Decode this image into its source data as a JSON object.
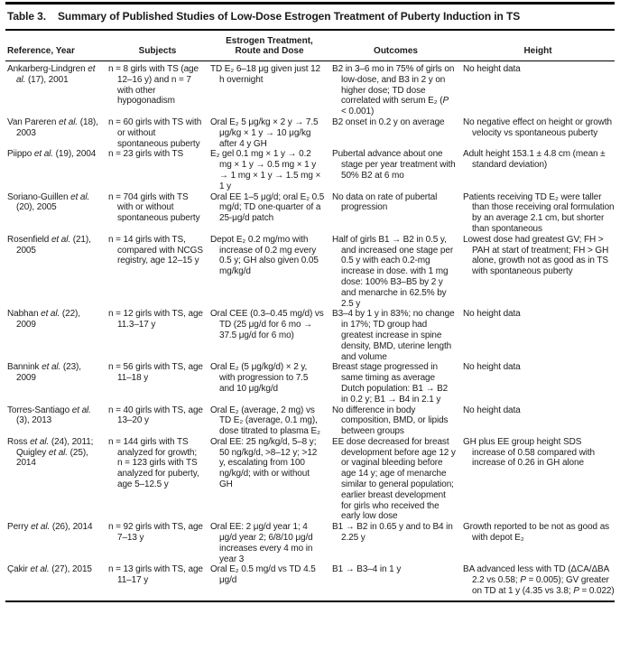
{
  "page": {
    "colors": {
      "background": "#ffffff",
      "text": "#1b1b1b",
      "rule": "#000000"
    }
  },
  "table": {
    "label": "Table 3.",
    "title": "Summary of Published Studies of Low-Dose Estrogen Treatment of Puberty Induction in TS",
    "columns": [
      "Reference, Year",
      "Subjects",
      "Estrogen Treatment, Route and Dose",
      "Outcomes",
      "Height"
    ],
    "rows": [
      {
        "reference": "Ankarberg-Lindgren *et al.* (17), 2001",
        "subjects": "n = 8 girls with TS (age 12–16 y) and n = 7 with other hypogonadism",
        "treatment": "TD E₂ 6–18 μg given just 12 h overnight",
        "outcomes": "B2 in 3–6 mo in 75% of girls on low-dose, and B3 in 2 y on higher dose; TD dose correlated with serum E₂ (*P* < 0.001)",
        "height": "No height data"
      },
      {
        "reference": "Van Pareren *et al.* (18), 2003",
        "subjects": "n = 60 girls with TS with or without spontaneous puberty",
        "treatment": "Oral E₂ 5 μg/kg × 2 y → 7.5 μg/kg × 1 y → 10 μg/kg after 4 y GH",
        "outcomes": "B2 onset in 0.2 y on average",
        "height": "No negative effect on height or growth velocity vs spontaneous puberty"
      },
      {
        "reference": "Piippo *et al.* (19), 2004",
        "subjects": "n = 23 girls with TS",
        "treatment": "E₂ gel 0.1 mg × 1 y → 0.2 mg × 1 y → 0.5 mg × 1 y → 1 mg × 1 y → 1.5 mg × 1 y",
        "outcomes": "Pubertal advance about one stage per year treatment with 50% B2 at 6 mo",
        "height": "Adult height 153.1 ± 4.8 cm (mean ± standard deviation)"
      },
      {
        "reference": "Soriano-Guillen *et al.* (20), 2005",
        "subjects": "n = 704 girls with TS with or without spontaneous puberty",
        "treatment": "Oral EE 1–5 μg/d; oral E₂ 0.5 mg/d; TD one-quarter of a 25-μg/d patch",
        "outcomes": "No data on rate of pubertal progression",
        "height": "Patients receiving TD E₂ were taller than those receiving oral formulation by an average 2.1 cm, but shorter than spontaneous"
      },
      {
        "reference": "Rosenfield *et al.* (21), 2005",
        "subjects": "n = 14 girls with TS, compared with NCGS registry, age 12–15 y",
        "treatment": "Depot E₂ 0.2 mg/mo with increase of 0.2 mg every 0.5 y; GH also given 0.05 mg/kg/d",
        "outcomes": "Half of girls B1 → B2 in 0.5 y, and increased one stage per 0.5 y with each 0.2-mg increase in dose. with 1 mg dose: 100% B3–B5 by 2 y and menarche in 62.5% by 2.5 y",
        "height": "Lowest dose had greatest GV; FH > PAH at start of treatment; FH > GH alone, growth not as good as in TS with spontaneous puberty"
      },
      {
        "reference": "Nabhan *et al.* (22), 2009",
        "subjects": "n = 12 girls with TS, age 11.3–17 y",
        "treatment": "Oral CEE (0.3–0.45 mg/d) vs TD (25 μg/d for 6 mo → 37.5 μg/d for 6 mo)",
        "outcomes": "B3–4 by 1 y in 83%; no change in 17%; TD group had greatest increase in spine density, BMD, uterine length and volume",
        "height": "No height data"
      },
      {
        "reference": "Bannink *et al.* (23), 2009",
        "subjects": "n = 56 girls with TS, age 11–18 y",
        "treatment": "Oral E₂ (5 μg/kg/d) × 2 y, with progression to 7.5 and 10 μg/kg/d",
        "outcomes": "Breast stage progressed in same timing as average Dutch population: B1 → B2 in 0.2 y; B1 → B4 in 2.1 y",
        "height": "No height data"
      },
      {
        "reference": "Torres-Santiago *et al.* (3), 2013",
        "subjects": "n = 40 girls with TS, age 13–20 y",
        "treatment": "Oral E₂ (average, 2 mg) vs TD E₂ (average, 0.1 mg), dose titrated to plasma E₂",
        "outcomes": "No difference in body composition, BMD, or lipids between groups",
        "height": "No height data"
      },
      {
        "reference": "Ross *et al.* (24), 2011; Quigley *et al.* (25), 2014",
        "subjects": "n = 144 girls with TS analyzed for growth; n = 123 girls with TS analyzed for puberty, age 5–12.5 y",
        "treatment": "Oral EE: 25 ng/kg/d, 5–8 y; 50 ng/kg/d, >8–12 y; >12 y, escalating from 100 ng/kg/d; with or without GH",
        "outcomes": "EE dose decreased for breast development before age 12 y or vaginal bleeding before age 14 y; age of menarche similar to general population; earlier breast development for girls who received the early low dose",
        "height": "GH plus EE group height SDS increase of 0.58 compared with increase of 0.26 in GH alone"
      },
      {
        "reference": "Perry *et al.* (26), 2014",
        "subjects": "n = 92 girls with TS, age 7–13 y",
        "treatment": "Oral EE: 2 μg/d year 1; 4 μg/d year 2; 6/8/10 μg/d increases every 4 mo in year 3",
        "outcomes": "B1 → B2 in 0.65 y and to B4 in 2.25 y",
        "height": "Growth reported to be not as good as with depot E₂"
      },
      {
        "reference": "Çakir *et al.* (27), 2015",
        "subjects": "n = 13 girls with TS, age 11–17 y",
        "treatment": "Oral E₂ 0.5 mg/d vs TD 4.5 μg/d",
        "outcomes": "B1 → B3–4 in 1 y",
        "height": "BA advanced less with TD (ΔCA/ΔBA 2.2 vs 0.58; *P* = 0.005); GV greater on TD at 1 y (4.35 vs 3.8; *P* = 0.022)"
      }
    ]
  }
}
